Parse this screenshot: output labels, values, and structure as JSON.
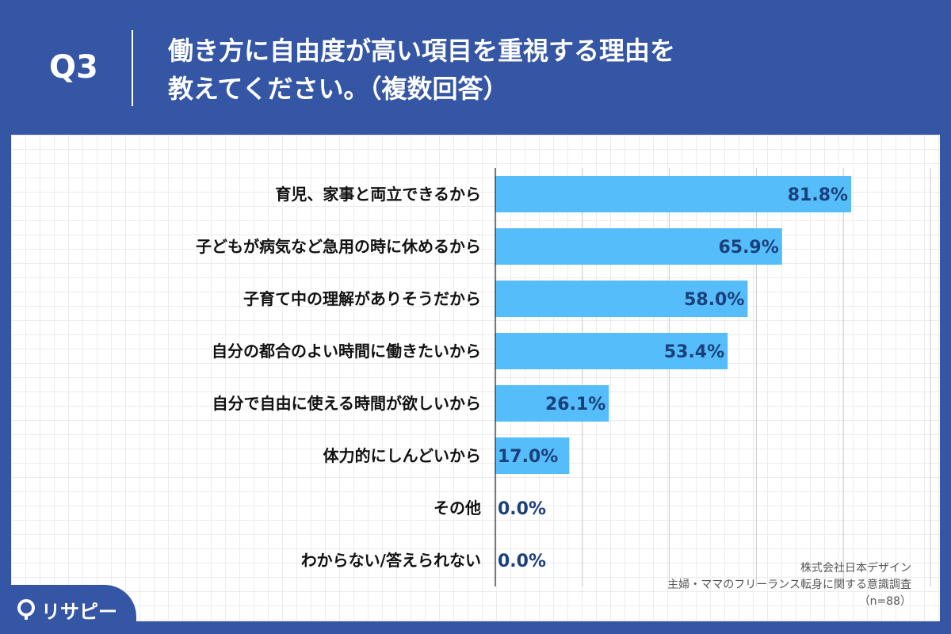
{
  "header": {
    "question_label": "Q3",
    "title_line1": "働き方に自由度が高い項目を重視する理由を",
    "title_line2": "教えてください。（複数回答）"
  },
  "source": {
    "company": "株式会社日本デザイン",
    "survey": "主婦・ママのフリーランス転身に関する意識調査",
    "sample": "（n=88）"
  },
  "logo": {
    "text": "リサピー"
  },
  "colors": {
    "header_bg": "#3556a4",
    "bar": "#56bdfb",
    "value_text": "#1b3f7a"
  },
  "chart_data": {
    "type": "bar",
    "orientation": "horizontal",
    "categories": [
      "育児、家事と両立できるから",
      "子どもが病気など急用の時に休めるから",
      "子育て中の理解がありそうだから",
      "自分の都合のよい時間に働きたいから",
      "自分で自由に使える時間が欲しいから",
      "体力的にしんどいから",
      "その他",
      "わからない/答えられない"
    ],
    "values": [
      81.8,
      65.9,
      58.0,
      53.4,
      26.1,
      17.0,
      0.0,
      0.0
    ],
    "value_labels": [
      "81.8%",
      "65.9%",
      "58.0%",
      "53.4%",
      "26.1%",
      "17.0%",
      "0.0%",
      "0.0%"
    ],
    "xlim": [
      0,
      100
    ],
    "grid": true
  }
}
